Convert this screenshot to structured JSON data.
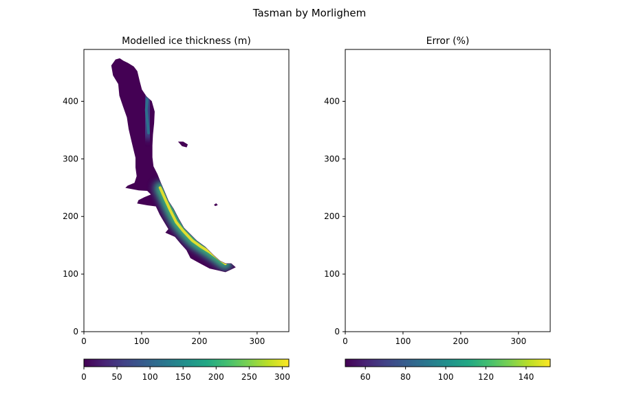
{
  "figure": {
    "suptitle": "Tasman by Morlighem"
  },
  "chart_data": [
    {
      "type": "heatmap",
      "title": "Modelled ice thickness (m)",
      "xlabel": "",
      "ylabel": "",
      "xlim": [
        0,
        355
      ],
      "ylim": [
        490,
        0
      ],
      "y_inverted": true,
      "xticks": [
        0,
        100,
        200,
        300
      ],
      "yticks": [
        0,
        100,
        200,
        300,
        400
      ],
      "grid": false,
      "colormap": "viridis",
      "colorbar": {
        "orientation": "horizontal",
        "range": [
          0,
          310
        ],
        "ticks": [
          0,
          50,
          100,
          150,
          200,
          250,
          300
        ]
      },
      "glacier_outline": [
        [
          55,
          472
        ],
        [
          48,
          462
        ],
        [
          51,
          445
        ],
        [
          60,
          430
        ],
        [
          62,
          410
        ],
        [
          68,
          392
        ],
        [
          75,
          372
        ],
        [
          78,
          352
        ],
        [
          82,
          335
        ],
        [
          86,
          318
        ],
        [
          90,
          302
        ],
        [
          90,
          285
        ],
        [
          92,
          270
        ],
        [
          88,
          258
        ],
        [
          76,
          253
        ],
        [
          73,
          250
        ],
        [
          95,
          246
        ],
        [
          110,
          245
        ],
        [
          117,
          238
        ],
        [
          105,
          233
        ],
        [
          95,
          228
        ],
        [
          93,
          223
        ],
        [
          110,
          220
        ],
        [
          125,
          218
        ],
        [
          132,
          203
        ],
        [
          138,
          193
        ],
        [
          147,
          178
        ],
        [
          142,
          172
        ],
        [
          158,
          165
        ],
        [
          168,
          153
        ],
        [
          178,
          142
        ],
        [
          185,
          128
        ],
        [
          203,
          118
        ],
        [
          218,
          110
        ],
        [
          232,
          107
        ],
        [
          245,
          104
        ],
        [
          254,
          108
        ],
        [
          262,
          112
        ],
        [
          255,
          118
        ],
        [
          245,
          118
        ],
        [
          235,
          123
        ],
        [
          225,
          132
        ],
        [
          210,
          147
        ],
        [
          195,
          158
        ],
        [
          183,
          170
        ],
        [
          173,
          180
        ],
        [
          165,
          194
        ],
        [
          155,
          213
        ],
        [
          146,
          227
        ],
        [
          139,
          244
        ],
        [
          133,
          258
        ],
        [
          127,
          273
        ],
        [
          120,
          287
        ],
        [
          118,
          303
        ],
        [
          118,
          323
        ],
        [
          119,
          342
        ],
        [
          121,
          362
        ],
        [
          122,
          382
        ],
        [
          117,
          400
        ],
        [
          108,
          408
        ],
        [
          100,
          420
        ],
        [
          96,
          435
        ],
        [
          92,
          452
        ],
        [
          86,
          460
        ],
        [
          76,
          466
        ],
        [
          68,
          470
        ],
        [
          62,
          474
        ]
      ],
      "thickness_ridges": [
        {
          "path": [
            [
              132,
              250
            ],
            [
              140,
              232
            ],
            [
              150,
              210
            ],
            [
              160,
              190
            ],
            [
              172,
              175
            ],
            [
              188,
              158
            ],
            [
              202,
              148
            ],
            [
              218,
              138
            ],
            [
              232,
              128
            ],
            [
              245,
              118
            ]
          ],
          "peak_value": 300
        },
        {
          "path": [
            [
              110,
              405
            ],
            [
              108,
              385
            ],
            [
              110,
              365
            ],
            [
              112,
              345
            ]
          ],
          "peak_value": 110
        }
      ],
      "islands": [
        [
          [
            163,
            330
          ],
          [
            170,
            322
          ],
          [
            178,
            320
          ],
          [
            180,
            325
          ],
          [
            172,
            330
          ]
        ],
        [
          [
            225,
            220
          ],
          [
            228,
            218
          ],
          [
            232,
            220
          ],
          [
            229,
            223
          ]
        ]
      ]
    },
    {
      "type": "heatmap",
      "title": "Error (%)",
      "xlabel": "",
      "ylabel": "",
      "xlim": [
        0,
        355
      ],
      "ylim": [
        490,
        0
      ],
      "y_inverted": true,
      "xticks": [
        0,
        100,
        200,
        300
      ],
      "yticks": [
        0,
        100,
        200,
        300,
        400
      ],
      "grid": false,
      "colormap": "viridis",
      "empty": true,
      "colorbar": {
        "orientation": "horizontal",
        "range": [
          50,
          152
        ],
        "ticks": [
          60,
          80,
          100,
          120,
          140
        ]
      }
    }
  ]
}
